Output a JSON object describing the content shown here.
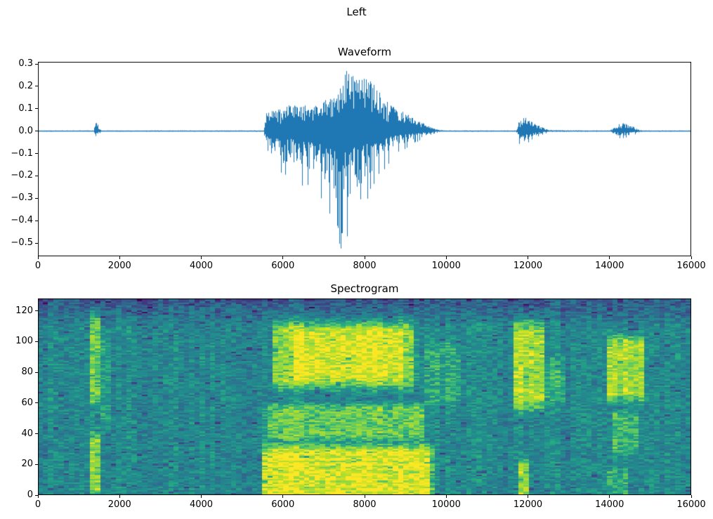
{
  "figure": {
    "title": "Left",
    "background": "#ffffff"
  },
  "chart_data": [
    {
      "type": "line",
      "title": "Waveform",
      "line_color": "#1f77b4",
      "x_range": [
        0,
        16000
      ],
      "y_range": [
        -0.5595,
        0.3095
      ],
      "grid": false,
      "xticks": [
        {
          "v": 0,
          "label": "0"
        },
        {
          "v": 2000,
          "label": "2000"
        },
        {
          "v": 4000,
          "label": "4000"
        },
        {
          "v": 6000,
          "label": "6000"
        },
        {
          "v": 8000,
          "label": "8000"
        },
        {
          "v": 10000,
          "label": "10000"
        },
        {
          "v": 12000,
          "label": "12000"
        },
        {
          "v": 14000,
          "label": "14000"
        },
        {
          "v": 16000,
          "label": "16000"
        }
      ],
      "yticks": [
        {
          "v": 0.3,
          "label": "0.3"
        },
        {
          "v": 0.2,
          "label": "0.2"
        },
        {
          "v": 0.1,
          "label": "0.1"
        },
        {
          "v": 0.0,
          "label": "0.0"
        },
        {
          "v": -0.1,
          "label": "−0.1"
        },
        {
          "v": -0.2,
          "label": "−0.2"
        },
        {
          "v": -0.3,
          "label": "−0.3"
        },
        {
          "v": -0.4,
          "label": "−0.4"
        },
        {
          "v": -0.5,
          "label": "−0.5"
        }
      ],
      "envelope": [
        [
          0,
          0.003,
          0.003
        ],
        [
          1370,
          0.003,
          0.003
        ],
        [
          1400,
          0.04,
          0.05
        ],
        [
          1440,
          0.05,
          0.05
        ],
        [
          1500,
          0.012,
          0.012
        ],
        [
          1560,
          0.003,
          0.003
        ],
        [
          5540,
          0.003,
          0.003
        ],
        [
          5600,
          0.1,
          0.13
        ],
        [
          5800,
          0.11,
          0.16
        ],
        [
          6000,
          0.1,
          0.22
        ],
        [
          6200,
          0.12,
          0.19
        ],
        [
          6400,
          0.11,
          0.27
        ],
        [
          6600,
          0.12,
          0.24
        ],
        [
          6800,
          0.13,
          0.3
        ],
        [
          7000,
          0.14,
          0.33
        ],
        [
          7200,
          0.15,
          0.42
        ],
        [
          7400,
          0.19,
          0.53
        ],
        [
          7550,
          0.27,
          0.5
        ],
        [
          7700,
          0.25,
          0.42
        ],
        [
          7900,
          0.23,
          0.35
        ],
        [
          8100,
          0.24,
          0.3
        ],
        [
          8300,
          0.19,
          0.24
        ],
        [
          8500,
          0.14,
          0.17
        ],
        [
          8700,
          0.11,
          0.12
        ],
        [
          8900,
          0.09,
          0.09
        ],
        [
          9100,
          0.07,
          0.07
        ],
        [
          9300,
          0.05,
          0.05
        ],
        [
          9500,
          0.03,
          0.03
        ],
        [
          9650,
          0.015,
          0.015
        ],
        [
          9800,
          0.006,
          0.006
        ],
        [
          10000,
          0.003,
          0.003
        ],
        [
          11720,
          0.003,
          0.003
        ],
        [
          11780,
          0.045,
          0.055
        ],
        [
          11900,
          0.07,
          0.08
        ],
        [
          12020,
          0.05,
          0.05
        ],
        [
          12150,
          0.035,
          0.035
        ],
        [
          12300,
          0.022,
          0.022
        ],
        [
          12450,
          0.01,
          0.01
        ],
        [
          12600,
          0.004,
          0.004
        ],
        [
          14020,
          0.003,
          0.003
        ],
        [
          14120,
          0.02,
          0.02
        ],
        [
          14280,
          0.038,
          0.038
        ],
        [
          14450,
          0.03,
          0.03
        ],
        [
          14600,
          0.018,
          0.018
        ],
        [
          14720,
          0.006,
          0.006
        ],
        [
          14850,
          0.003,
          0.003
        ],
        [
          16000,
          0.003,
          0.003
        ]
      ]
    },
    {
      "type": "heatmap",
      "title": "Spectrogram",
      "colormap": "viridis",
      "x_range": [
        0,
        16000
      ],
      "y_range": [
        0,
        128
      ],
      "time_frames": 125,
      "freq_bins": 128,
      "background_level": 0.45,
      "noise_amount": 0.13,
      "xticks": [
        {
          "v": 0,
          "label": "0"
        },
        {
          "v": 2000,
          "label": "2000"
        },
        {
          "v": 4000,
          "label": "4000"
        },
        {
          "v": 6000,
          "label": "6000"
        },
        {
          "v": 8000,
          "label": "8000"
        },
        {
          "v": 10000,
          "label": "10000"
        },
        {
          "v": 12000,
          "label": "12000"
        },
        {
          "v": 14000,
          "label": "14000"
        },
        {
          "v": 16000,
          "label": "16000"
        }
      ],
      "yticks": [
        {
          "v": 0,
          "label": "0"
        },
        {
          "v": 20,
          "label": "20"
        },
        {
          "v": 40,
          "label": "40"
        },
        {
          "v": 60,
          "label": "60"
        },
        {
          "v": 80,
          "label": "80"
        },
        {
          "v": 100,
          "label": "100"
        },
        {
          "v": 120,
          "label": "120"
        }
      ],
      "events": [
        {
          "t": [
            1260,
            1540
          ],
          "f": [
            -4,
            46
          ],
          "i": 0.34
        },
        {
          "t": [
            1260,
            1540
          ],
          "f": [
            52,
            126
          ],
          "i": 0.3
        },
        {
          "t": [
            1560,
            1780
          ],
          "f": [
            40,
            112
          ],
          "i": 0.1
        },
        {
          "t": [
            5480,
            9700
          ],
          "f": [
            -6,
            36
          ],
          "i": 0.52,
          "stripes": true
        },
        {
          "t": [
            5550,
            9500
          ],
          "f": [
            34,
            62
          ],
          "i": 0.28
        },
        {
          "t": [
            5750,
            9300
          ],
          "f": [
            66,
            118
          ],
          "i": 0.36
        },
        {
          "t": [
            6250,
            8950
          ],
          "f": [
            72,
            112
          ],
          "i": 0.16
        },
        {
          "t": [
            9450,
            10350
          ],
          "f": [
            55,
            105
          ],
          "i": 0.12
        },
        {
          "t": [
            11680,
            12420
          ],
          "f": [
            52,
            118
          ],
          "i": 0.4
        },
        {
          "t": [
            11740,
            12080
          ],
          "f": [
            -4,
            26
          ],
          "i": 0.34
        },
        {
          "t": [
            12350,
            12900
          ],
          "f": [
            58,
            92
          ],
          "i": 0.16
        },
        {
          "t": [
            13980,
            14880
          ],
          "f": [
            58,
            108
          ],
          "i": 0.4
        },
        {
          "t": [
            14060,
            14720
          ],
          "f": [
            24,
            58
          ],
          "i": 0.2
        },
        {
          "t": [
            13900,
            14520
          ],
          "f": [
            -4,
            20
          ],
          "i": 0.14
        }
      ]
    }
  ]
}
